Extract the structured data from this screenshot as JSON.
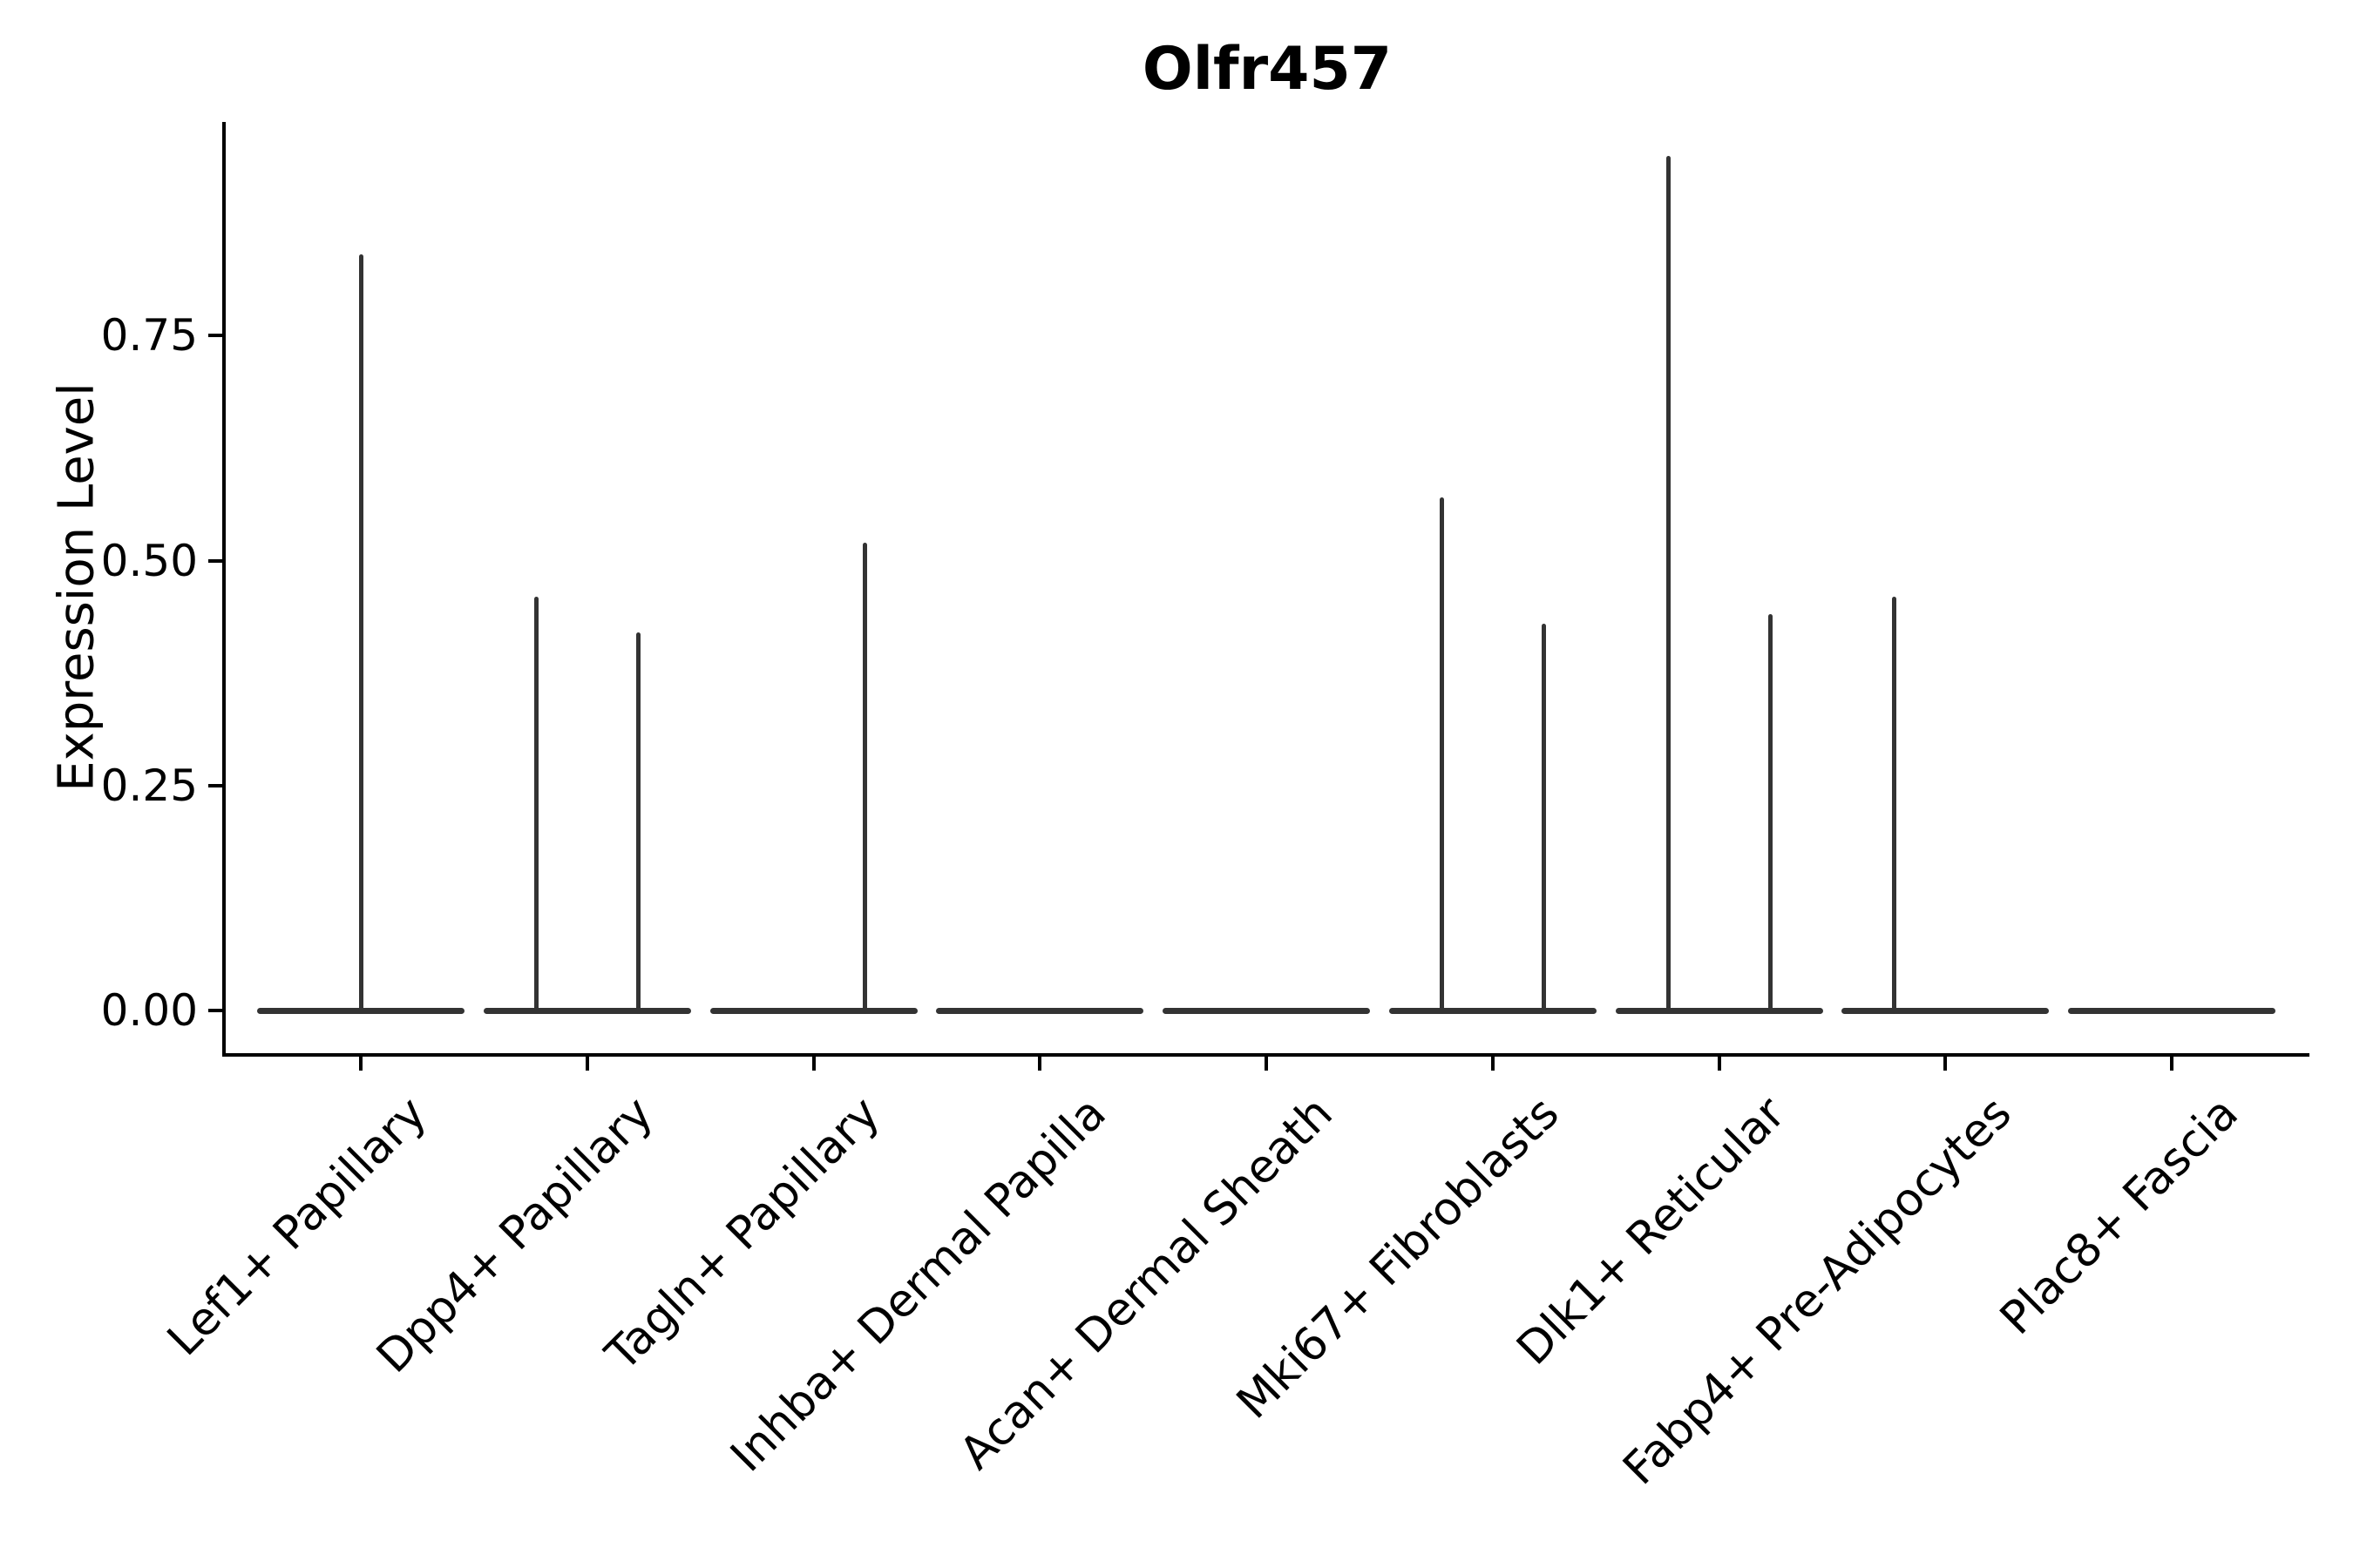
{
  "chart_data": {
    "type": "violin",
    "title": "Olfr457",
    "ylabel": "Expression Level",
    "xlabel": "",
    "y_ticks": [
      "0.00",
      "0.25",
      "0.50",
      "0.75"
    ],
    "y_tick_values": [
      0.0,
      0.25,
      0.5,
      0.75
    ],
    "ylim": [
      0,
      1.035
    ],
    "grid": false,
    "legend": false,
    "axis_color": "#000000",
    "violin_color": "#333333",
    "categories": [
      "Lef1+ Papillary",
      "Dpp4+ Papillary",
      "Tagln+ Papillary",
      "Inhba+ Dermal Papilla",
      "Acan+ Dermal Sheath",
      "Mki67+ Fibroblasts",
      "Dlk1+ Reticular",
      "Fabp4+ Pre-Adipocytes",
      "Plac8+ Fascia"
    ],
    "violins": [
      {
        "category": "Lef1+ Papillary",
        "body": "flat-at-zero",
        "spikes": [
          {
            "position": "center",
            "value": 0.84
          }
        ]
      },
      {
        "category": "Dpp4+ Papillary",
        "body": "flat-at-zero",
        "spikes": [
          {
            "position": "left",
            "value": 0.46
          },
          {
            "position": "right",
            "value": 0.42
          }
        ]
      },
      {
        "category": "Tagln+ Papillary",
        "body": "flat-at-zero",
        "spikes": [
          {
            "position": "right",
            "value": 0.52
          }
        ]
      },
      {
        "category": "Inhba+ Dermal Papilla",
        "body": "flat-at-zero",
        "spikes": []
      },
      {
        "category": "Acan+ Dermal Sheath",
        "body": "flat-at-zero",
        "spikes": []
      },
      {
        "category": "Mki67+ Fibroblasts",
        "body": "flat-at-zero",
        "spikes": [
          {
            "position": "left",
            "value": 0.57
          },
          {
            "position": "right",
            "value": 0.43
          }
        ]
      },
      {
        "category": "Dlk1+ Reticular",
        "body": "flat-at-zero",
        "spikes": [
          {
            "position": "left",
            "value": 0.95
          },
          {
            "position": "right",
            "value": 0.44
          }
        ]
      },
      {
        "category": "Fabp4+ Pre-Adipocytes",
        "body": "flat-at-zero",
        "spikes": [
          {
            "position": "left",
            "value": 0.46
          }
        ]
      },
      {
        "category": "Plac8+ Fascia",
        "body": "flat-at-zero",
        "spikes": []
      }
    ]
  }
}
